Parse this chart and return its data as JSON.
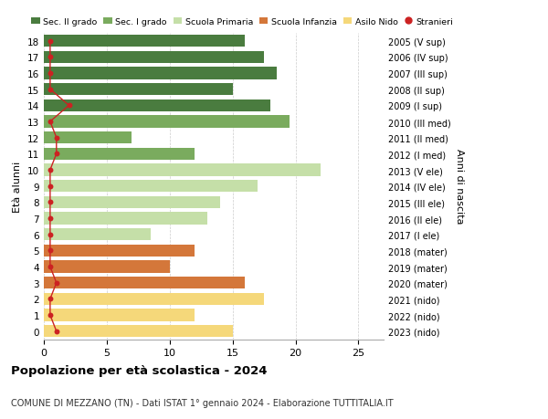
{
  "ages": [
    18,
    17,
    16,
    15,
    14,
    13,
    12,
    11,
    10,
    9,
    8,
    7,
    6,
    5,
    4,
    3,
    2,
    1,
    0
  ],
  "right_labels": [
    "2005 (V sup)",
    "2006 (IV sup)",
    "2007 (III sup)",
    "2008 (II sup)",
    "2009 (I sup)",
    "2010 (III med)",
    "2011 (II med)",
    "2012 (I med)",
    "2013 (V ele)",
    "2014 (IV ele)",
    "2015 (III ele)",
    "2016 (II ele)",
    "2017 (I ele)",
    "2018 (mater)",
    "2019 (mater)",
    "2020 (mater)",
    "2021 (nido)",
    "2022 (nido)",
    "2023 (nido)"
  ],
  "values": [
    16,
    17.5,
    18.5,
    15,
    18,
    19.5,
    7,
    12,
    22,
    17,
    14,
    13,
    8.5,
    12,
    10,
    16,
    17.5,
    12,
    15
  ],
  "stranieri": [
    0.5,
    0.5,
    0.5,
    0.5,
    2,
    0.5,
    1,
    1,
    0.5,
    0.5,
    0.5,
    0.5,
    0.5,
    0.5,
    0.5,
    1,
    0.5,
    0.5,
    1
  ],
  "bar_colors": [
    "#4a7c3f",
    "#4a7c3f",
    "#4a7c3f",
    "#4a7c3f",
    "#4a7c3f",
    "#7aab5e",
    "#7aab5e",
    "#7aab5e",
    "#c5dfa8",
    "#c5dfa8",
    "#c5dfa8",
    "#c5dfa8",
    "#c5dfa8",
    "#d4773a",
    "#d4773a",
    "#d4773a",
    "#f5d87a",
    "#f5d87a",
    "#f5d87a"
  ],
  "legend_labels": [
    "Sec. II grado",
    "Sec. I grado",
    "Scuola Primaria",
    "Scuola Infanzia",
    "Asilo Nido",
    "Stranieri"
  ],
  "legend_colors": [
    "#4a7c3f",
    "#7aab5e",
    "#c5dfa8",
    "#d4773a",
    "#f5d87a",
    "#cc2222"
  ],
  "stranieri_color": "#cc2222",
  "title": "Popolazione per età scolastica - 2024",
  "subtitle": "COMUNE DI MEZZANO (TN) - Dati ISTAT 1° gennaio 2024 - Elaborazione TUTTITALIA.IT",
  "ylabel": "Età alunni",
  "right_ylabel": "Anni di nascita",
  "xlim": [
    0,
    27
  ],
  "xticks": [
    0,
    5,
    10,
    15,
    20,
    25
  ],
  "background_color": "#ffffff",
  "grid_color": "#cccccc"
}
